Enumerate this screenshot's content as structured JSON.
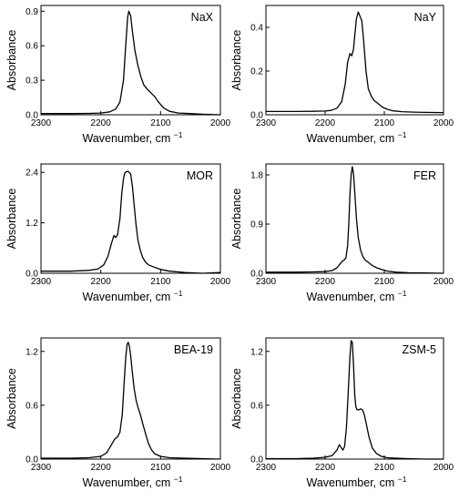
{
  "chart_data": [
    {
      "type": "line",
      "label": "NaX",
      "xlabel": "Wavenumber, cm",
      "xlabel_sup": "−1",
      "ylabel": "Absorbance",
      "xlim": [
        2300,
        2000
      ],
      "ylim": [
        0,
        0.95
      ],
      "xticks": [
        "2300",
        "2200",
        "2100",
        "2000"
      ],
      "yticks": [
        "0.0",
        "0.3",
        "0.6",
        "0.9"
      ],
      "series": [
        {
          "x": [
            2300,
            2250,
            2220,
            2200,
            2185,
            2175,
            2168,
            2162,
            2158,
            2155,
            2153,
            2150,
            2147,
            2143,
            2138,
            2133,
            2128,
            2122,
            2118,
            2114,
            2110,
            2105,
            2100,
            2095,
            2085,
            2070,
            2050,
            2030,
            2000
          ],
          "y": [
            0.01,
            0.01,
            0.012,
            0.015,
            0.025,
            0.05,
            0.11,
            0.3,
            0.62,
            0.85,
            0.9,
            0.86,
            0.72,
            0.56,
            0.43,
            0.33,
            0.26,
            0.22,
            0.2,
            0.18,
            0.16,
            0.12,
            0.09,
            0.06,
            0.03,
            0.015,
            0.01,
            0.005,
            0.0
          ]
        }
      ]
    },
    {
      "type": "line",
      "label": "NaY",
      "xlabel": "Wavenumber, cm",
      "xlabel_sup": "−1",
      "ylabel": "Absorbance",
      "xlim": [
        2300,
        2000
      ],
      "ylim": [
        0,
        0.5
      ],
      "xticks": [
        "2300",
        "2200",
        "2100",
        "2000"
      ],
      "yticks": [
        "0.0",
        "0.2",
        "0.4"
      ],
      "series": [
        {
          "x": [
            2300,
            2250,
            2220,
            2200,
            2190,
            2180,
            2172,
            2166,
            2162,
            2158,
            2155,
            2152,
            2150,
            2147,
            2144,
            2141,
            2138,
            2135,
            2131,
            2127,
            2122,
            2117,
            2110,
            2103,
            2095,
            2085,
            2070,
            2050,
            2030,
            2000
          ],
          "y": [
            0.015,
            0.015,
            0.016,
            0.017,
            0.02,
            0.03,
            0.06,
            0.14,
            0.24,
            0.28,
            0.27,
            0.3,
            0.36,
            0.44,
            0.47,
            0.45,
            0.43,
            0.34,
            0.2,
            0.12,
            0.085,
            0.065,
            0.05,
            0.035,
            0.025,
            0.018,
            0.014,
            0.012,
            0.011,
            0.01
          ]
        }
      ]
    },
    {
      "type": "line",
      "label": "MOR",
      "xlabel": "Wavenumber, cm",
      "xlabel_sup": "−1",
      "ylabel": "Absorbance",
      "xlim": [
        2300,
        2000
      ],
      "ylim": [
        0,
        2.6
      ],
      "xticks": [
        "2300",
        "2200",
        "2100",
        "2000"
      ],
      "yticks": [
        "0.0",
        "1.2",
        "2.4"
      ],
      "series": [
        {
          "x": [
            2300,
            2250,
            2220,
            2205,
            2195,
            2188,
            2182,
            2178,
            2175,
            2172,
            2168,
            2165,
            2162,
            2160,
            2157,
            2154,
            2150,
            2147,
            2144,
            2141,
            2138,
            2134,
            2130,
            2125,
            2120,
            2115,
            2110,
            2100,
            2085,
            2060,
            2030,
            2000
          ],
          "y": [
            0.05,
            0.05,
            0.07,
            0.1,
            0.2,
            0.4,
            0.72,
            0.9,
            0.85,
            0.92,
            1.3,
            1.9,
            2.25,
            2.38,
            2.42,
            2.42,
            2.36,
            2.05,
            1.6,
            1.15,
            0.8,
            0.55,
            0.38,
            0.26,
            0.2,
            0.17,
            0.14,
            0.09,
            0.05,
            0.02,
            0.0,
            0.02
          ]
        }
      ]
    },
    {
      "type": "line",
      "label": "FER",
      "xlabel": "Wavenumber, cm",
      "xlabel_sup": "−1",
      "ylabel": "Absorbance",
      "xlim": [
        2300,
        2000
      ],
      "ylim": [
        0,
        2.0
      ],
      "xticks": [
        "2300",
        "2200",
        "2100",
        "2000"
      ],
      "yticks": [
        "0.0",
        "0.9",
        "1.8"
      ],
      "series": [
        {
          "x": [
            2300,
            2250,
            2220,
            2200,
            2188,
            2180,
            2175,
            2171,
            2168,
            2165,
            2162,
            2160,
            2158,
            2156,
            2154,
            2152,
            2150,
            2147,
            2144,
            2140,
            2136,
            2132,
            2127,
            2120,
            2113,
            2105,
            2095,
            2080,
            2060,
            2030,
            2000
          ],
          "y": [
            0.02,
            0.02,
            0.025,
            0.03,
            0.05,
            0.1,
            0.17,
            0.22,
            0.24,
            0.28,
            0.5,
            0.9,
            1.45,
            1.8,
            1.95,
            1.82,
            1.5,
            1.0,
            0.65,
            0.42,
            0.3,
            0.24,
            0.2,
            0.14,
            0.1,
            0.07,
            0.04,
            0.02,
            0.01,
            0.005,
            0.0
          ]
        }
      ]
    },
    {
      "type": "line",
      "label": "BEA-19",
      "xlabel": "Wavenumber, cm",
      "xlabel_sup": "−1",
      "ylabel": "Absorbance",
      "xlim": [
        2300,
        2000
      ],
      "ylim": [
        0,
        1.35
      ],
      "xticks": [
        "2300",
        "2200",
        "2100",
        "2000"
      ],
      "yticks": [
        "0.0",
        "0.6",
        "1.2"
      ],
      "series": [
        {
          "x": [
            2300,
            2250,
            2220,
            2200,
            2190,
            2183,
            2177,
            2172,
            2168,
            2164,
            2161,
            2158,
            2156,
            2154,
            2152,
            2150,
            2147,
            2144,
            2141,
            2138,
            2134,
            2130,
            2125,
            2120,
            2115,
            2110,
            2100,
            2085,
            2060,
            2030,
            2000
          ],
          "y": [
            0.01,
            0.01,
            0.015,
            0.03,
            0.07,
            0.15,
            0.22,
            0.25,
            0.3,
            0.5,
            0.85,
            1.15,
            1.28,
            1.3,
            1.25,
            1.15,
            0.95,
            0.78,
            0.66,
            0.58,
            0.5,
            0.4,
            0.28,
            0.17,
            0.1,
            0.06,
            0.03,
            0.015,
            0.01,
            0.005,
            0.0
          ]
        }
      ]
    },
    {
      "type": "line",
      "label": "ZSM-5",
      "xlabel": "Wavenumber, cm",
      "xlabel_sup": "−1",
      "ylabel": "Absorbance",
      "xlim": [
        2300,
        2000
      ],
      "ylim": [
        0,
        1.35
      ],
      "xticks": [
        "2300",
        "2200",
        "2100",
        "2000"
      ],
      "yticks": [
        "0.0",
        "0.6",
        "1.2"
      ],
      "series": [
        {
          "x": [
            2300,
            2250,
            2220,
            2200,
            2188,
            2180,
            2176,
            2173,
            2170,
            2167,
            2164,
            2161,
            2158,
            2156,
            2154,
            2152,
            2150,
            2148,
            2146,
            2143,
            2140,
            2137,
            2134,
            2130,
            2126,
            2120,
            2113,
            2105,
            2095,
            2080,
            2060,
            2030,
            2000
          ],
          "y": [
            0.005,
            0.005,
            0.01,
            0.02,
            0.04,
            0.1,
            0.16,
            0.13,
            0.1,
            0.14,
            0.35,
            0.75,
            1.15,
            1.32,
            1.3,
            1.05,
            0.72,
            0.58,
            0.55,
            0.55,
            0.56,
            0.55,
            0.5,
            0.38,
            0.25,
            0.12,
            0.06,
            0.03,
            0.015,
            0.01,
            0.005,
            0.0,
            0.0
          ]
        }
      ]
    }
  ]
}
